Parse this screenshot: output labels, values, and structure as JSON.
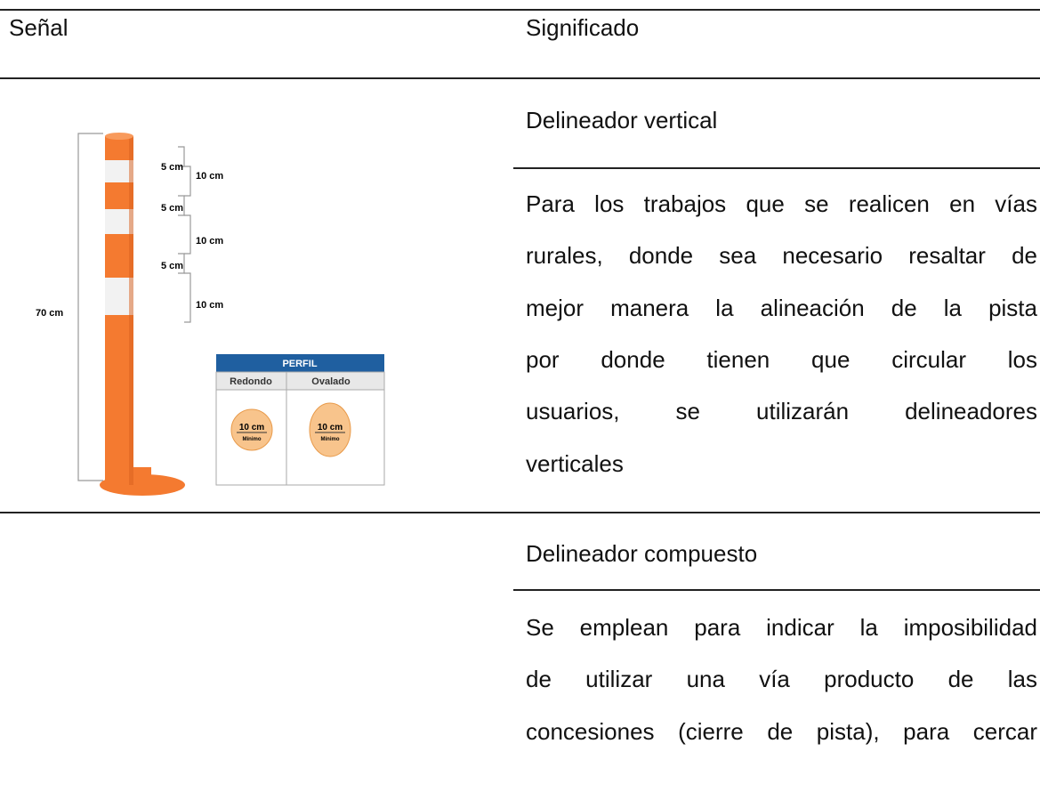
{
  "table": {
    "header": [
      "Señal",
      "Significado"
    ],
    "rows": [
      {
        "title": "Delineador vertical",
        "description": [
          "Para los trabajos que se realicen en vías",
          "rurales, donde sea necesario resaltar de",
          "mejor manera la alineación de la pista",
          "por donde tienen que circular los",
          "usuarios, se utilizarán delineadores",
          "verticales"
        ],
        "figure": {
          "height": "70 cm",
          "segments": [
            "5 cm",
            "10 cm",
            "5 cm",
            "10 cm",
            "5 cm",
            "10 cm"
          ],
          "profile": {
            "title": "PERFIL",
            "shapes": [
              "Redondo",
              "Ovalado"
            ],
            "size": [
              "10 cm",
              "10 cm"
            ],
            "note": [
              "Mínimo",
              "Mínimo"
            ]
          }
        }
      },
      {
        "title": "Delineador compuesto",
        "description": [
          "Se emplean para indicar la imposibilidad",
          "de utilizar una vía producto de las",
          "concesiones (cierre de pista), para cercar"
        ]
      }
    ]
  }
}
